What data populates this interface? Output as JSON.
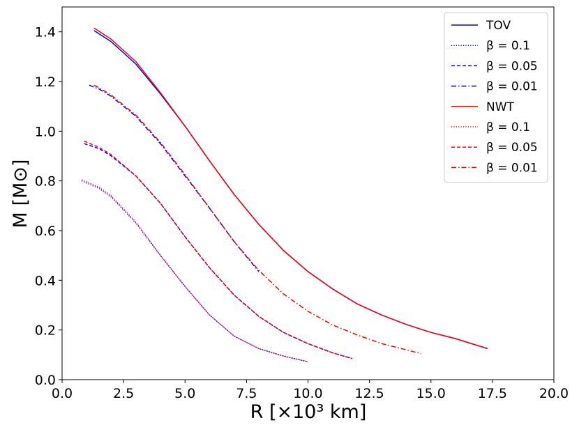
{
  "chart_data": {
    "type": "line",
    "title": "",
    "xlabel": "R [×10³ km]",
    "ylabel": "M [M⊙]",
    "xlim": [
      0.0,
      20.0
    ],
    "ylim": [
      0.0,
      1.5
    ],
    "xticks": [
      "0.0",
      "2.5",
      "5.0",
      "7.5",
      "10.0",
      "12.5",
      "15.0",
      "17.5",
      "20.0"
    ],
    "yticks": [
      "0.0",
      "0.2",
      "0.4",
      "0.6",
      "0.8",
      "1.0",
      "1.2",
      "1.4"
    ],
    "grid": false,
    "legend_position": "top-right",
    "legend": [
      {
        "label": "TOV",
        "color": "#0000ff",
        "dash": "solid"
      },
      {
        "label": "β = 0.1",
        "color": "#0000ff",
        "dash": "dotted"
      },
      {
        "label": "β = 0.05",
        "color": "#0000ff",
        "dash": "dashed"
      },
      {
        "label": "β = 0.01",
        "color": "#0000ff",
        "dash": "dashdot"
      },
      {
        "label": "NWT",
        "color": "#ff0000",
        "dash": "solid"
      },
      {
        "label": "β = 0.1",
        "color": "#ff0000",
        "dash": "dotted"
      },
      {
        "label": "β = 0.05",
        "color": "#ff0000",
        "dash": "dashed"
      },
      {
        "label": "β = 0.01",
        "color": "#ff0000",
        "dash": "dashdot"
      }
    ],
    "series": [
      {
        "name": "TOV",
        "color": "#0000ff",
        "dash": "solid",
        "x": [
          1.3,
          2.0,
          3.0,
          4.0,
          5.0,
          6.0,
          7.0,
          8.0,
          9.0,
          10.0,
          11.0,
          12.0,
          13.0,
          14.0,
          15.0,
          16.0,
          17.3
        ],
        "y": [
          1.405,
          1.36,
          1.27,
          1.15,
          1.02,
          0.88,
          0.745,
          0.625,
          0.52,
          0.435,
          0.365,
          0.305,
          0.26,
          0.222,
          0.19,
          0.165,
          0.125
        ]
      },
      {
        "name": "NWT",
        "color": "#ff0000",
        "dash": "solid",
        "x": [
          1.3,
          2.0,
          3.0,
          4.0,
          5.0,
          6.0,
          7.0,
          8.0,
          9.0,
          10.0,
          11.0,
          12.0,
          13.0,
          14.0,
          15.0,
          16.0,
          17.3
        ],
        "y": [
          1.415,
          1.37,
          1.28,
          1.155,
          1.02,
          0.88,
          0.745,
          0.625,
          0.52,
          0.435,
          0.365,
          0.305,
          0.26,
          0.222,
          0.19,
          0.165,
          0.125
        ]
      },
      {
        "name": "β = 0.1",
        "color": "#0000ff",
        "dash": "dotted",
        "x": [
          0.8,
          1.5,
          2.0,
          3.0,
          4.0,
          5.0,
          6.0,
          7.0,
          8.0,
          9.0,
          10.0
        ],
        "y": [
          0.8,
          0.77,
          0.735,
          0.63,
          0.5,
          0.375,
          0.26,
          0.175,
          0.125,
          0.095,
          0.072
        ]
      },
      {
        "name": "β = 0.1",
        "color": "#ff0000",
        "dash": "dotted",
        "x": [
          0.8,
          1.5,
          2.0,
          3.0,
          4.0,
          5.0,
          6.0,
          7.0,
          8.0,
          9.0,
          10.0
        ],
        "y": [
          0.805,
          0.775,
          0.74,
          0.635,
          0.5,
          0.375,
          0.26,
          0.175,
          0.125,
          0.095,
          0.072
        ]
      },
      {
        "name": "β = 0.05",
        "color": "#0000ff",
        "dash": "dashed",
        "x": [
          0.9,
          1.5,
          2.0,
          3.0,
          4.0,
          5.0,
          6.0,
          7.0,
          8.0,
          9.0,
          10.0,
          11.0,
          11.8
        ],
        "y": [
          0.95,
          0.93,
          0.9,
          0.82,
          0.71,
          0.575,
          0.45,
          0.34,
          0.255,
          0.19,
          0.145,
          0.108,
          0.085
        ]
      },
      {
        "name": "β = 0.05",
        "color": "#ff0000",
        "dash": "dashed",
        "x": [
          0.9,
          1.5,
          2.0,
          3.0,
          4.0,
          5.0,
          6.0,
          7.0,
          8.0,
          9.0,
          10.0,
          11.0,
          11.8
        ],
        "y": [
          0.96,
          0.935,
          0.905,
          0.82,
          0.71,
          0.575,
          0.45,
          0.34,
          0.255,
          0.19,
          0.145,
          0.108,
          0.085
        ]
      },
      {
        "name": "β = 0.01",
        "color": "#0000ff",
        "dash": "dashdot",
        "x": [
          1.1,
          1.5,
          2.0,
          3.0,
          4.0,
          5.0,
          6.0,
          7.0,
          8.0
        ],
        "y": [
          1.185,
          1.17,
          1.14,
          1.06,
          0.95,
          0.82,
          0.69,
          0.555,
          0.435
        ]
      },
      {
        "name": "β = 0.01",
        "color": "#ff0000",
        "dash": "dashdot",
        "x": [
          1.3,
          1.5,
          2.0,
          3.0,
          4.0,
          5.0,
          6.0,
          7.0,
          8.0,
          9.0,
          10.0,
          11.0,
          12.0,
          13.0,
          14.0,
          14.6
        ],
        "y": [
          1.185,
          1.175,
          1.145,
          1.065,
          0.955,
          0.825,
          0.69,
          0.555,
          0.44,
          0.345,
          0.275,
          0.22,
          0.18,
          0.145,
          0.12,
          0.105
        ]
      }
    ]
  }
}
